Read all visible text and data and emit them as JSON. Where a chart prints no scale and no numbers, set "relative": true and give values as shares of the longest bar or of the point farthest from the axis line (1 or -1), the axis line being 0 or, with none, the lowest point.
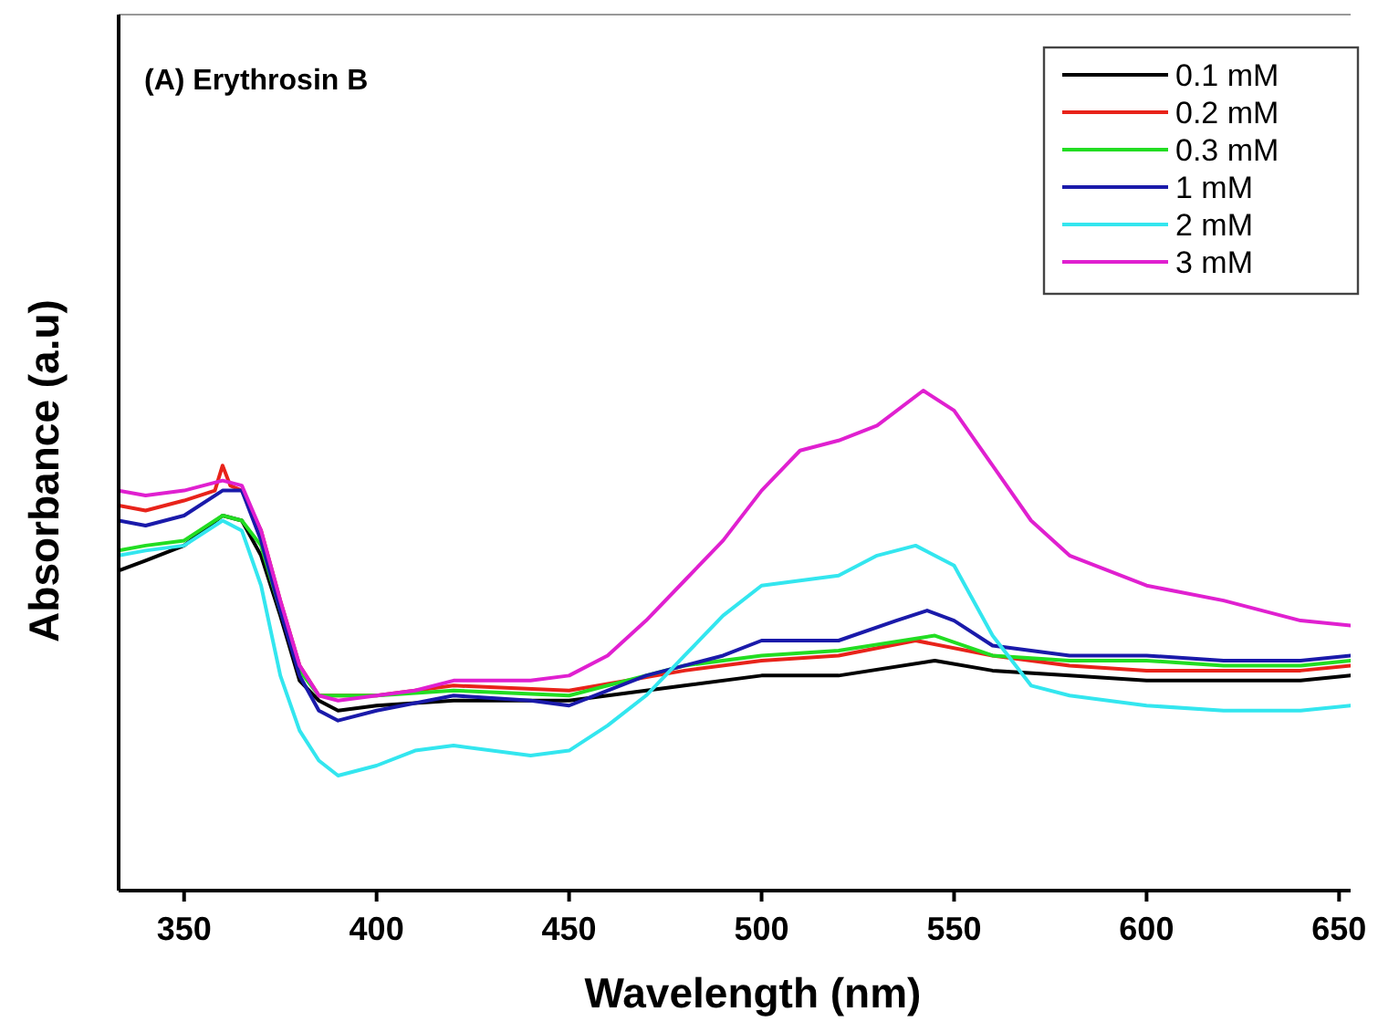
{
  "chart_data": {
    "type": "line",
    "title": "(A) Erythrosin B",
    "xlabel": "Wavelength (nm)",
    "ylabel": "Absorbance (a.u)",
    "relative": true,
    "tick_labels": "x",
    "legend": "top right",
    "line_style": "solid",
    "grid": false,
    "xlim": [
      333,
      653
    ],
    "xticks": [
      350,
      400,
      450,
      500,
      550,
      600,
      650
    ],
    "series": [
      {
        "name": "0.1 mM",
        "color": "#000000",
        "x": [
          333,
          340,
          350,
          360,
          365,
          370,
          375,
          380,
          385,
          390,
          400,
          420,
          450,
          480,
          500,
          520,
          545,
          560,
          580,
          600,
          620,
          640,
          653
        ],
        "values": [
          0.64,
          0.66,
          0.69,
          0.75,
          0.74,
          0.67,
          0.55,
          0.42,
          0.38,
          0.36,
          0.37,
          0.38,
          0.38,
          0.41,
          0.43,
          0.43,
          0.46,
          0.44,
          0.43,
          0.42,
          0.42,
          0.42,
          0.43
        ]
      },
      {
        "name": "0.2 mM",
        "color": "#e8231a",
        "x": [
          333,
          340,
          350,
          358,
          360,
          362,
          365,
          370,
          375,
          380,
          385,
          390,
          400,
          420,
          450,
          480,
          500,
          520,
          540,
          560,
          580,
          600,
          620,
          640,
          653
        ],
        "values": [
          0.77,
          0.76,
          0.78,
          0.8,
          0.85,
          0.81,
          0.8,
          0.72,
          0.58,
          0.45,
          0.39,
          0.39,
          0.39,
          0.41,
          0.4,
          0.44,
          0.46,
          0.47,
          0.5,
          0.47,
          0.45,
          0.44,
          0.44,
          0.44,
          0.45
        ]
      },
      {
        "name": "0.3 mM",
        "color": "#22dd22",
        "x": [
          333,
          340,
          350,
          360,
          365,
          370,
          375,
          380,
          385,
          390,
          400,
          420,
          450,
          480,
          500,
          520,
          545,
          560,
          580,
          600,
          620,
          640,
          653
        ],
        "values": [
          0.68,
          0.69,
          0.7,
          0.75,
          0.74,
          0.69,
          0.56,
          0.44,
          0.39,
          0.39,
          0.39,
          0.4,
          0.39,
          0.45,
          0.47,
          0.48,
          0.51,
          0.47,
          0.46,
          0.46,
          0.45,
          0.45,
          0.46
        ]
      },
      {
        "name": "1 mM",
        "color": "#1a1aaa",
        "x": [
          333,
          340,
          350,
          360,
          365,
          370,
          375,
          380,
          385,
          390,
          400,
          420,
          440,
          450,
          470,
          490,
          500,
          520,
          535,
          543,
          550,
          560,
          580,
          600,
          620,
          640,
          653
        ],
        "values": [
          0.74,
          0.73,
          0.75,
          0.8,
          0.8,
          0.7,
          0.56,
          0.43,
          0.36,
          0.34,
          0.36,
          0.39,
          0.38,
          0.37,
          0.43,
          0.47,
          0.5,
          0.5,
          0.54,
          0.56,
          0.54,
          0.49,
          0.47,
          0.47,
          0.46,
          0.46,
          0.47
        ]
      },
      {
        "name": "2 mM",
        "color": "#33e6ef",
        "x": [
          333,
          340,
          350,
          360,
          365,
          370,
          375,
          380,
          385,
          390,
          400,
          410,
          420,
          440,
          450,
          460,
          470,
          480,
          490,
          500,
          510,
          520,
          530,
          540,
          550,
          560,
          570,
          580,
          600,
          620,
          640,
          653
        ],
        "values": [
          0.67,
          0.68,
          0.69,
          0.74,
          0.72,
          0.61,
          0.43,
          0.32,
          0.26,
          0.23,
          0.25,
          0.28,
          0.29,
          0.27,
          0.28,
          0.33,
          0.39,
          0.47,
          0.55,
          0.61,
          0.62,
          0.63,
          0.67,
          0.69,
          0.65,
          0.51,
          0.41,
          0.39,
          0.37,
          0.36,
          0.36,
          0.37
        ]
      },
      {
        "name": "3 mM",
        "color": "#e020d0",
        "x": [
          333,
          340,
          350,
          360,
          365,
          370,
          375,
          380,
          385,
          390,
          400,
          410,
          420,
          440,
          450,
          460,
          470,
          480,
          490,
          500,
          510,
          520,
          530,
          542,
          550,
          560,
          570,
          580,
          600,
          620,
          640,
          653
        ],
        "values": [
          0.8,
          0.79,
          0.8,
          0.82,
          0.81,
          0.72,
          0.58,
          0.45,
          0.39,
          0.38,
          0.39,
          0.4,
          0.42,
          0.42,
          0.43,
          0.47,
          0.54,
          0.62,
          0.7,
          0.8,
          0.88,
          0.9,
          0.93,
          1.0,
          0.96,
          0.85,
          0.74,
          0.67,
          0.61,
          0.58,
          0.54,
          0.53
        ]
      }
    ]
  }
}
